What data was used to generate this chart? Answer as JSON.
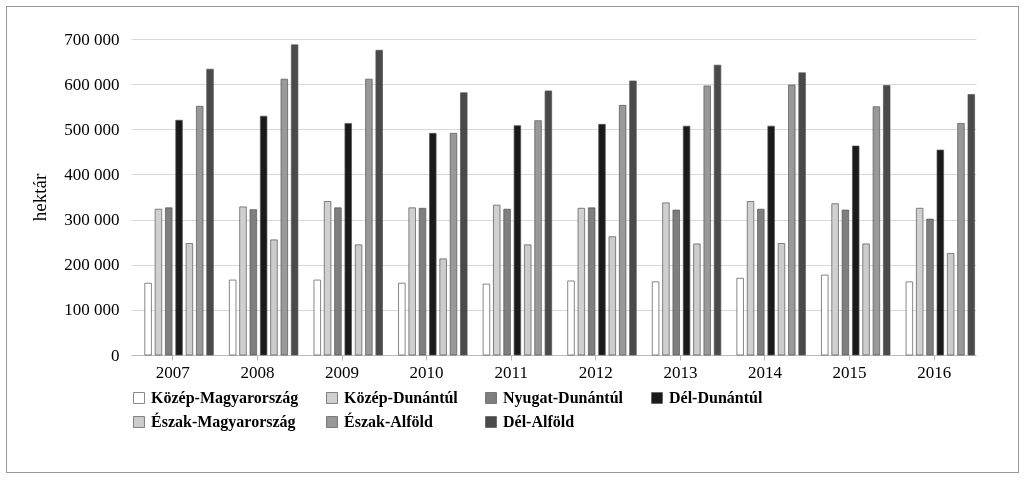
{
  "chart_data": {
    "type": "bar",
    "ylabel": "hektár",
    "categories": [
      "2007",
      "2008",
      "2009",
      "2010",
      "2011",
      "2012",
      "2013",
      "2014",
      "2015",
      "2016"
    ],
    "series": [
      {
        "name": "Közép-Magyarország",
        "color": "#ffffff",
        "values": [
          159000,
          166000,
          166000,
          159000,
          157000,
          164000,
          162000,
          170000,
          177000,
          162000
        ]
      },
      {
        "name": "Közép-Dunántúl",
        "color": "#d0d0d0",
        "values": [
          323000,
          328000,
          340000,
          326000,
          332000,
          325000,
          337000,
          340000,
          335000,
          325000
        ]
      },
      {
        "name": "Nyugat-Dunántúl",
        "color": "#7f7f7f",
        "values": [
          326000,
          322000,
          326000,
          325000,
          323000,
          326000,
          321000,
          323000,
          321000,
          301000
        ]
      },
      {
        "name": "Dél-Dunántúl",
        "color": "#1a1a1a",
        "values": [
          520000,
          529000,
          513000,
          491000,
          508000,
          511000,
          507000,
          507000,
          463000,
          454000
        ]
      },
      {
        "name": "Észak-Magyarország",
        "color": "#cccccc",
        "values": [
          247000,
          255000,
          244000,
          213000,
          244000,
          262000,
          246000,
          247000,
          246000,
          225000
        ]
      },
      {
        "name": "Észak-Alföld",
        "color": "#999999",
        "values": [
          551000,
          611000,
          611000,
          491000,
          519000,
          553000,
          596000,
          598000,
          550000,
          513000
        ]
      },
      {
        "name": "Dél-Alföld",
        "color": "#4a4a4a",
        "values": [
          633000,
          687000,
          675000,
          581000,
          585000,
          607000,
          642000,
          625000,
          597000,
          577000
        ]
      }
    ],
    "ylim": [
      0,
      700000
    ],
    "yticks": [
      0,
      {
        "value": 100000,
        "label": "100 000"
      },
      {
        "value": 200000,
        "label": "200 000"
      },
      {
        "value": 300000,
        "label": "300 000"
      },
      {
        "value": 400000,
        "label": "400 000"
      },
      {
        "value": 500000,
        "label": "500 000"
      },
      {
        "value": 600000,
        "label": "600 000"
      },
      {
        "value": 700000,
        "label": "700 000"
      }
    ],
    "grid": "y",
    "legend": "bottom"
  }
}
